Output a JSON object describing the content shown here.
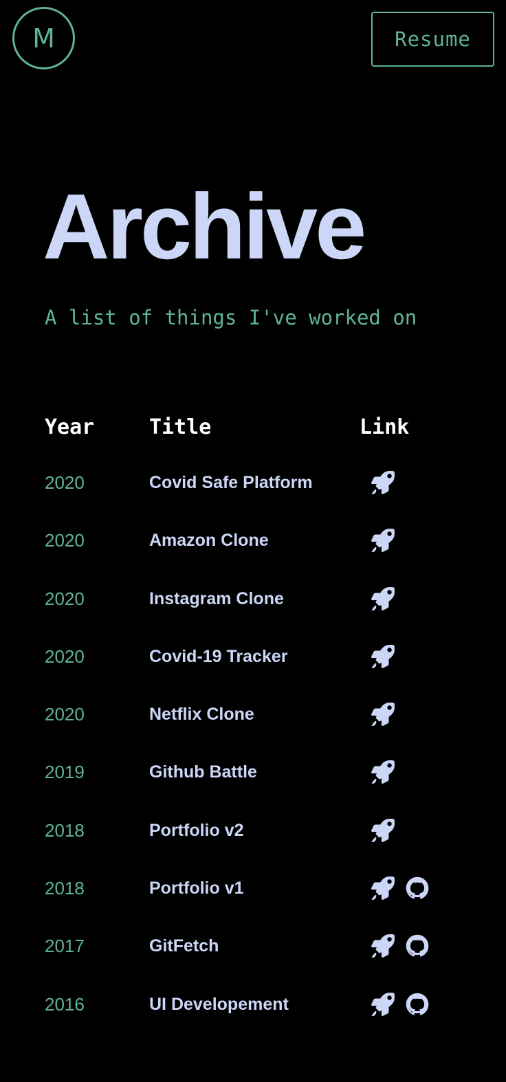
{
  "header": {
    "logo_letter": "M",
    "resume_label": "Resume"
  },
  "page": {
    "title": "Archive",
    "subtitle": "A list of things I've worked on"
  },
  "table": {
    "headers": {
      "year": "Year",
      "title": "Title",
      "link": "Link"
    },
    "rows": [
      {
        "year": "2020",
        "title": "Covid Safe Platform",
        "links": [
          "rocket-icon"
        ]
      },
      {
        "year": "2020",
        "title": "Amazon Clone",
        "links": [
          "rocket-icon"
        ]
      },
      {
        "year": "2020",
        "title": "Instagram Clone",
        "links": [
          "rocket-icon"
        ]
      },
      {
        "year": "2020",
        "title": "Covid-19 Tracker",
        "links": [
          "rocket-icon"
        ]
      },
      {
        "year": "2020",
        "title": "Netflix Clone",
        "links": [
          "rocket-icon"
        ]
      },
      {
        "year": "2019",
        "title": "Github Battle",
        "links": [
          "rocket-icon"
        ]
      },
      {
        "year": "2018",
        "title": "Portfolio v2",
        "links": [
          "rocket-icon"
        ]
      },
      {
        "year": "2018",
        "title": "Portfolio v1",
        "links": [
          "rocket-icon",
          "github-icon"
        ]
      },
      {
        "year": "2017",
        "title": "GitFetch",
        "links": [
          "rocket-icon",
          "github-icon"
        ]
      },
      {
        "year": "2016",
        "title": "UI Developement",
        "links": [
          "rocket-icon",
          "github-icon"
        ]
      }
    ]
  },
  "colors": {
    "background": "#000000",
    "accent": "#5fb39b",
    "text_primary": "#ccd6f6",
    "heading_white": "#ffffff"
  }
}
